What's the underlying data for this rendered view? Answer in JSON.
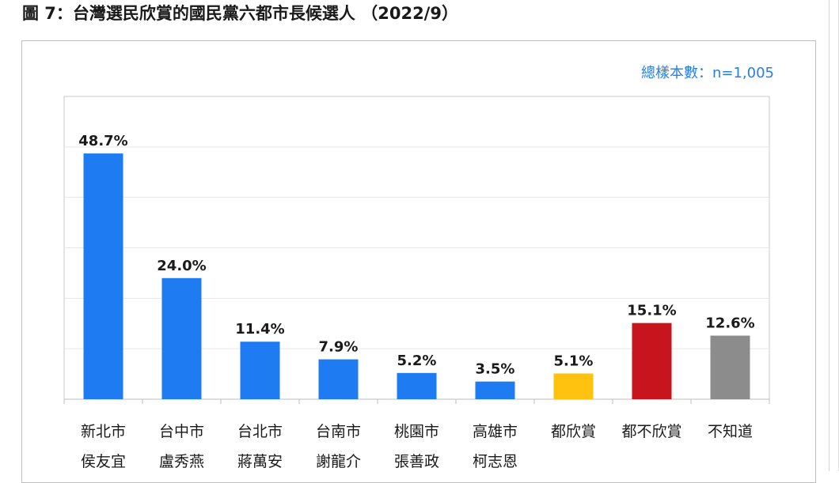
{
  "figure_title": "圖 7：台灣選民欣賞的國民黨六都市長候選人 （2022/9）",
  "sample_note": "總樣本數：n=1,005",
  "chart_data": {
    "type": "bar",
    "title": "圖 7：台灣選民欣賞的國民黨六都市長候選人 （2022/9）",
    "xlabel": "",
    "ylabel": "",
    "ylim": [
      0,
      60
    ],
    "grid": true,
    "legend": "none",
    "categories": [
      [
        "新北市",
        "侯友宜"
      ],
      [
        "台中市",
        "盧秀燕"
      ],
      [
        "台北市",
        "蔣萬安"
      ],
      [
        "台南市",
        "謝龍介"
      ],
      [
        "桃園市",
        "張善政"
      ],
      [
        "高雄市",
        "柯志恩"
      ],
      [
        "都欣賞"
      ],
      [
        "都不欣賞"
      ],
      [
        "不知道"
      ]
    ],
    "values": [
      48.7,
      24.0,
      11.4,
      7.9,
      5.2,
      3.5,
      5.1,
      15.1,
      12.6
    ],
    "value_labels": [
      "48.7%",
      "24.0%",
      "11.4%",
      "7.9%",
      "5.2%",
      "3.5%",
      "5.1%",
      "15.1%",
      "12.6%"
    ],
    "colors": [
      "#1f7bf2",
      "#1f7bf2",
      "#1f7bf2",
      "#1f7bf2",
      "#1f7bf2",
      "#1f7bf2",
      "#ffc20e",
      "#c8141c",
      "#8c8c8c"
    ]
  }
}
